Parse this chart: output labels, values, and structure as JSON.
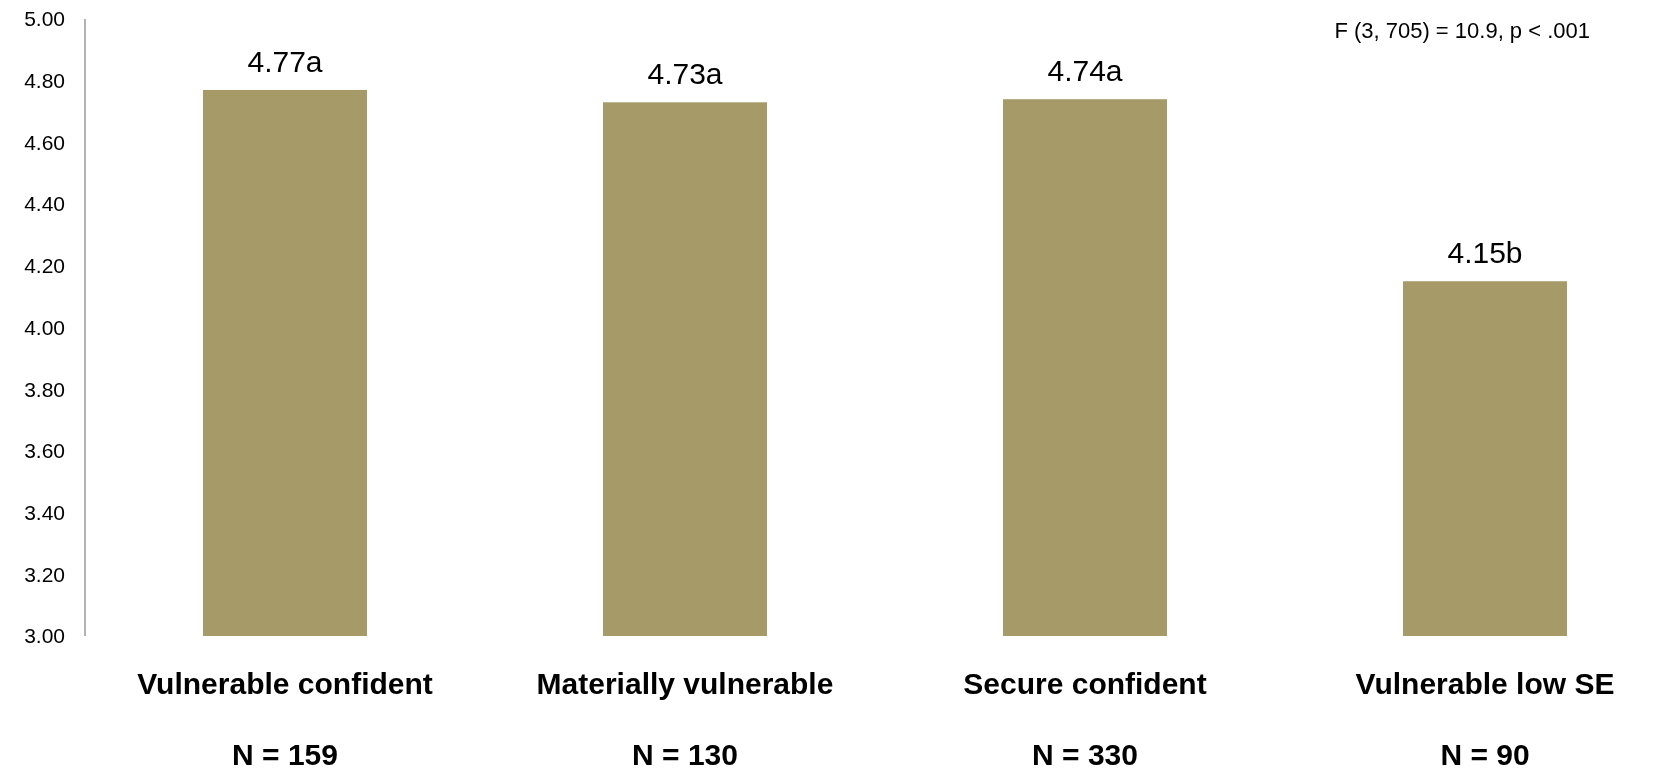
{
  "chart_data": {
    "type": "bar",
    "categories": [
      "Vulnerable confident\nN = 159",
      "Materially vulnerable\nN = 130",
      "Secure confident\nN = 330",
      "Vulnerable low SE\nN = 90"
    ],
    "values": [
      4.77,
      4.73,
      4.74,
      4.15
    ],
    "value_labels": [
      "4.77a",
      "4.73a",
      "4.74a",
      "4.15b"
    ],
    "color": "#a69a68",
    "ylim": [
      3.0,
      5.0
    ],
    "yticks": [
      {
        "value": 3.0,
        "label": "3.00"
      },
      {
        "value": 3.2,
        "label": "3.20"
      },
      {
        "value": 3.4,
        "label": "3.40"
      },
      {
        "value": 3.6,
        "label": "3.60"
      },
      {
        "value": 3.8,
        "label": "3.80"
      },
      {
        "value": 4.0,
        "label": "4.00"
      },
      {
        "value": 4.2,
        "label": "4.20"
      },
      {
        "value": 4.4,
        "label": "4.40"
      },
      {
        "value": 4.6,
        "label": "4.60"
      },
      {
        "value": 4.8,
        "label": "4.80"
      },
      {
        "value": 5.0,
        "label": "5.00"
      }
    ],
    "annotations": [
      "F (3, 705) = 10.9, p < .001"
    ]
  }
}
